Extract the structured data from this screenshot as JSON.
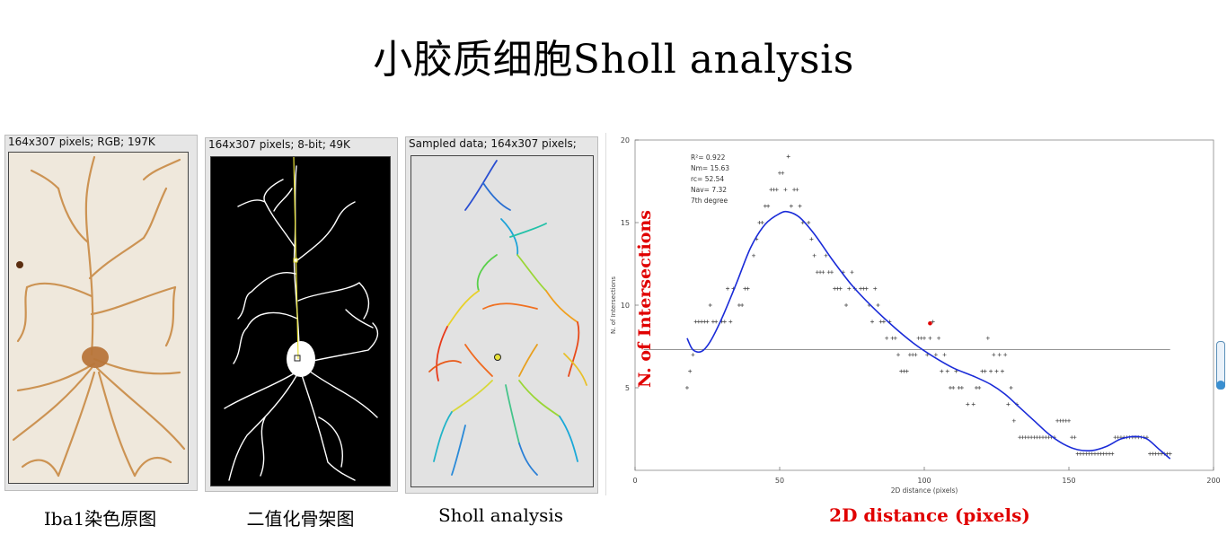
{
  "slide": {
    "title": "小胶质细胞Sholl analysis"
  },
  "panels": [
    {
      "header": "164x307 pixels; RGB; 197K",
      "caption": "Iba1染色原图"
    },
    {
      "header": "164x307 pixels; 8-bit; 49K",
      "caption": "二值化骨架图"
    },
    {
      "header": "Sampled data; 164x307 pixels;",
      "caption": "Sholl analysis"
    }
  ],
  "chart_data": {
    "type": "scatter",
    "title": "",
    "xlabel": "2D distance (pixels)",
    "ylabel": "N. of Intersections",
    "xlabel_overlay": "2D distance (pixels)",
    "ylabel_overlay": "N. of Intersections",
    "xlim": [
      0,
      200
    ],
    "ylim": [
      0,
      20
    ],
    "xticks": [
      "0",
      "50",
      "100",
      "150",
      "200"
    ],
    "yticks": [
      "5",
      "10",
      "15",
      "20"
    ],
    "stats": [
      "R²= 0.922",
      "Nm= 15.63",
      "rc= 52.54",
      "Nav= 7.32",
      "7th degree"
    ],
    "mean_line": 7.32,
    "highlight_point": {
      "x": 102,
      "y": 8.9
    },
    "fit_curve": {
      "x": [
        18,
        20,
        23,
        26,
        30,
        35,
        40,
        45,
        50,
        53,
        57,
        62,
        68,
        75,
        82,
        90,
        97,
        103,
        110,
        117,
        123,
        128,
        133,
        138,
        143,
        148,
        153,
        158,
        163,
        168,
        173,
        177,
        181,
        185
      ],
      "y": [
        8.0,
        7.3,
        7.2,
        7.8,
        9.2,
        11.3,
        13.5,
        14.9,
        15.55,
        15.65,
        15.3,
        14.3,
        12.8,
        11.2,
        9.9,
        8.6,
        7.6,
        6.9,
        6.2,
        5.7,
        5.2,
        4.6,
        3.8,
        3.0,
        2.2,
        1.6,
        1.25,
        1.2,
        1.45,
        1.9,
        2.05,
        1.9,
        1.3,
        0.7
      ]
    },
    "points": {
      "x": [
        18,
        19,
        20,
        21,
        22,
        23,
        24,
        25,
        26,
        27,
        28,
        30,
        31,
        32,
        33,
        34,
        36,
        37,
        38,
        39,
        41,
        42,
        43,
        44,
        45,
        46,
        47,
        48,
        49,
        50,
        51,
        52,
        53,
        54,
        55,
        56,
        57,
        58,
        60,
        61,
        62,
        63,
        64,
        65,
        66,
        67,
        68,
        69,
        70,
        71,
        72,
        73,
        74,
        75,
        76,
        78,
        79,
        80,
        81,
        82,
        83,
        84,
        85,
        86,
        87,
        88,
        89,
        90,
        91,
        92,
        93,
        94,
        95,
        96,
        97,
        98,
        99,
        100,
        101,
        102,
        103,
        104,
        105,
        106,
        107,
        108,
        109,
        110,
        111,
        112,
        113,
        115,
        117,
        118,
        119,
        120,
        121,
        122,
        123,
        124,
        125,
        126,
        127,
        128,
        129,
        130,
        131,
        132,
        133,
        134,
        135,
        136,
        137,
        138,
        139,
        140,
        141,
        142,
        143,
        144,
        145,
        146,
        147,
        148,
        149,
        150,
        151,
        152,
        153,
        154,
        155,
        156,
        157,
        158,
        159,
        160,
        161,
        162,
        163,
        164,
        165,
        166,
        167,
        168,
        169,
        170,
        171,
        172,
        173,
        174,
        175,
        176,
        177,
        178,
        179,
        180,
        181,
        182,
        183,
        184,
        185
      ],
      "y": [
        5,
        6,
        7,
        9,
        9,
        9,
        9,
        9,
        10,
        9,
        9,
        9,
        9,
        11,
        9,
        11,
        10,
        10,
        11,
        11,
        13,
        14,
        15,
        15,
        16,
        16,
        17,
        17,
        17,
        18,
        18,
        17,
        19,
        16,
        17,
        17,
        16,
        15,
        15,
        14,
        13,
        12,
        12,
        12,
        13,
        12,
        12,
        11,
        11,
        11,
        12,
        10,
        11,
        12,
        11,
        11,
        11,
        11,
        10,
        9,
        11,
        10,
        9,
        9,
        8,
        9,
        8,
        8,
        7,
        6,
        6,
        6,
        7,
        7,
        7,
        8,
        8,
        8,
        7,
        8,
        9,
        7,
        8,
        6,
        7,
        6,
        5,
        5,
        6,
        5,
        5,
        4,
        4,
        5,
        5,
        6,
        6,
        8,
        6,
        7,
        6,
        7,
        6,
        7,
        4,
        5,
        3,
        4,
        2,
        2,
        2,
        2,
        2,
        2,
        2,
        2,
        2,
        2,
        2,
        2,
        2,
        3,
        3,
        3,
        3,
        3,
        2,
        2,
        1,
        1,
        1,
        1,
        1,
        1,
        1,
        1,
        1,
        1,
        1,
        1,
        1,
        2,
        2,
        2,
        2,
        2,
        2,
        2,
        2,
        2,
        2,
        2,
        2,
        1,
        1,
        1,
        1,
        1,
        1,
        1,
        1
      ]
    }
  },
  "overlay_labels": {
    "y_axis": "N. of Intersections",
    "x_axis": "2D distance (pixels)"
  }
}
